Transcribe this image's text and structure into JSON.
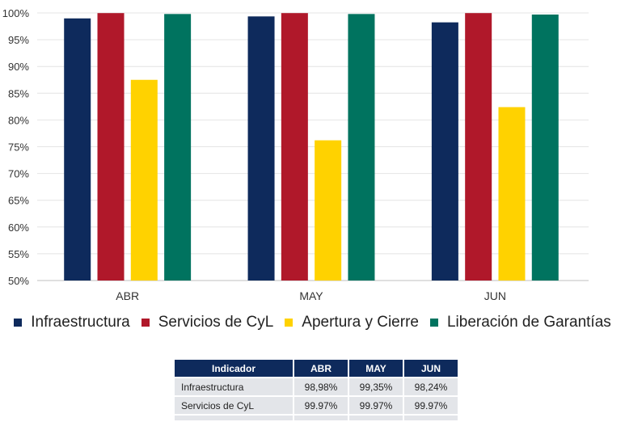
{
  "chart_data": {
    "type": "bar",
    "categories": [
      "ABR",
      "MAY",
      "JUN"
    ],
    "series": [
      {
        "name": "Infraestructura",
        "color": "#0e2a5c",
        "values": [
          98.98,
          99.35,
          98.24
        ]
      },
      {
        "name": "Servicios de CyL",
        "color": "#b0182a",
        "values": [
          99.97,
          99.97,
          99.97
        ]
      },
      {
        "name": "Apertura y Cierre",
        "color": "#ffd200",
        "values": [
          87.5,
          76.2,
          82.4
        ]
      },
      {
        "name": "Liberación de Garantías",
        "color": "#00735f",
        "values": [
          99.8,
          99.8,
          99.7
        ]
      }
    ],
    "ylim": [
      50,
      100
    ],
    "yticks": [
      "50%",
      "55%",
      "60%",
      "65%",
      "70%",
      "75%",
      "80%",
      "85%",
      "90%",
      "95%",
      "100%"
    ],
    "grid": true,
    "legend_position": "bottom"
  },
  "table": {
    "headers": [
      "Indicador",
      "ABR",
      "MAY",
      "JUN"
    ],
    "rows": [
      [
        "Infraestructura",
        "98,98%",
        "99,35%",
        "98,24%"
      ],
      [
        "Servicios de CyL",
        "99.97%",
        "99.97%",
        "99.97%"
      ]
    ]
  }
}
